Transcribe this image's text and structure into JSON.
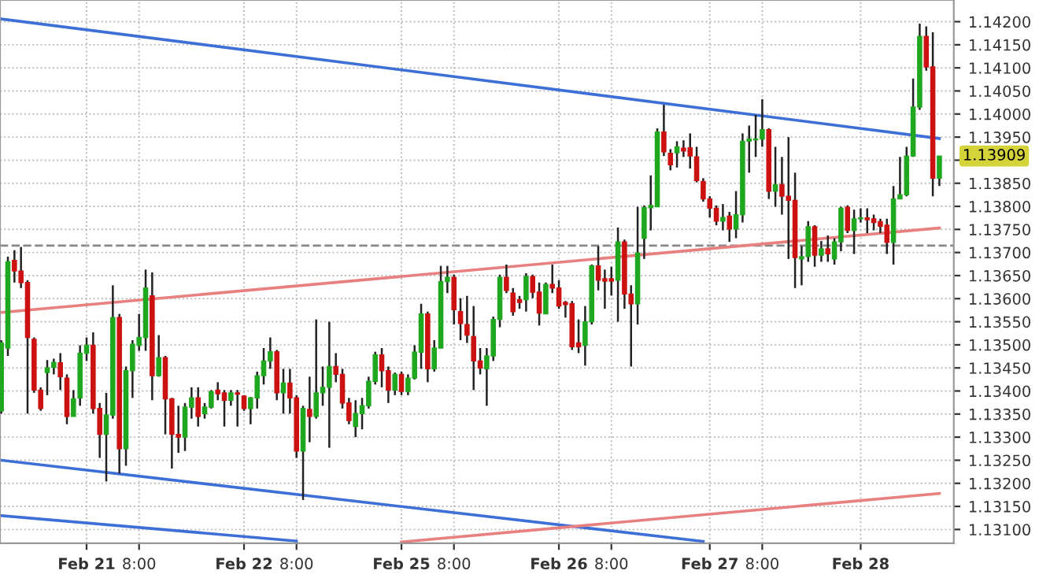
{
  "chart_data": {
    "type": "candlestick",
    "categories": [
      null,
      null,
      null,
      null,
      null,
      null,
      null,
      null,
      null,
      null,
      null,
      null,
      null,
      "Feb 21",
      null,
      null,
      null,
      null,
      null,
      null,
      null,
      "8:00",
      null,
      null,
      null,
      null,
      null,
      null,
      null,
      null,
      null,
      null,
      null,
      null,
      null,
      null,
      null,
      "Feb 22",
      null,
      null,
      null,
      null,
      null,
      null,
      null,
      "8:00",
      null,
      null,
      null,
      null,
      null,
      null,
      null,
      null,
      null,
      null,
      null,
      null,
      null,
      null,
      null,
      "Feb 25",
      null,
      null,
      null,
      null,
      null,
      null,
      null,
      "8:00",
      null,
      null,
      null,
      null,
      null,
      null,
      null,
      null,
      null,
      null,
      null,
      null,
      null,
      null,
      null,
      "Feb 26",
      null,
      null,
      null,
      null,
      null,
      null,
      null,
      "8:00",
      null,
      null,
      null,
      null,
      null,
      null,
      null,
      null,
      null,
      null,
      null,
      null,
      null,
      null,
      "Feb 27",
      null,
      null,
      null,
      null,
      null,
      null,
      null,
      "8:00",
      null,
      null,
      null,
      null,
      null,
      null,
      null,
      null,
      null,
      null,
      null,
      null,
      null,
      null,
      "Feb 28",
      null,
      null,
      null,
      null,
      null,
      null,
      null,
      null,
      null,
      null,
      null,
      null
    ],
    "ohlc": [
      [
        1.13357,
        1.1351,
        1.13351,
        1.13504
      ],
      [
        1.13493,
        1.13691,
        1.13476,
        1.1368
      ],
      [
        1.13683,
        1.13705,
        1.13635,
        1.1366
      ],
      [
        1.1366,
        1.13712,
        1.13623,
        1.13635
      ],
      [
        1.13635,
        1.1364,
        1.13351,
        1.13516
      ],
      [
        1.13512,
        1.13516,
        1.13396,
        1.13402
      ],
      [
        1.13402,
        1.13408,
        1.13357,
        1.13362
      ],
      [
        1.1344,
        1.13467,
        1.13391,
        1.1345
      ],
      [
        1.13451,
        1.1347,
        1.13436,
        1.13462
      ],
      [
        1.13461,
        1.13482,
        1.13402,
        1.13431
      ],
      [
        1.13428,
        1.13436,
        1.13328,
        1.13345
      ],
      [
        1.13345,
        1.13402,
        1.13345,
        1.13383
      ],
      [
        1.13385,
        1.13499,
        1.13368,
        1.13482
      ],
      [
        1.13482,
        1.13516,
        1.13465,
        1.13499
      ],
      [
        1.13499,
        1.13527,
        1.13351,
        1.13362
      ],
      [
        1.13362,
        1.13374,
        1.13255,
        1.13306
      ],
      [
        1.13306,
        1.13396,
        1.13204,
        1.13348
      ],
      [
        1.13348,
        1.13629,
        1.1334,
        1.13559
      ],
      [
        1.13559,
        1.13567,
        1.13221,
        1.13275
      ],
      [
        1.13275,
        1.13453,
        1.13238,
        1.13444
      ],
      [
        1.13444,
        1.1351,
        1.13385,
        1.13501
      ],
      [
        1.13499,
        1.13567,
        1.13487,
        1.13516
      ],
      [
        1.13516,
        1.13663,
        1.13487,
        1.13623
      ],
      [
        1.13606,
        1.13657,
        1.1338,
        1.13433
      ],
      [
        1.13433,
        1.13521,
        1.13431,
        1.13472
      ],
      [
        1.13472,
        1.13476,
        1.13306,
        1.13383
      ],
      [
        1.13383,
        1.13385,
        1.13232,
        1.13306
      ],
      [
        1.13306,
        1.13368,
        1.13266,
        1.133
      ],
      [
        1.133,
        1.13374,
        1.1327,
        1.13365
      ],
      [
        1.13365,
        1.13408,
        1.1334,
        1.13385
      ],
      [
        1.13385,
        1.13408,
        1.13323,
        1.13345
      ],
      [
        1.13351,
        1.13374,
        1.1334,
        1.13365
      ],
      [
        1.13365,
        1.13402,
        1.13362,
        1.13399
      ],
      [
        1.13402,
        1.13419,
        1.1338,
        1.13394
      ],
      [
        1.13396,
        1.13402,
        1.13323,
        1.1338
      ],
      [
        1.1338,
        1.13402,
        1.13368,
        1.13396
      ],
      [
        1.13396,
        1.13402,
        1.13323,
        1.13393
      ],
      [
        1.13389,
        1.13391,
        1.13357,
        1.13362
      ],
      [
        1.13362,
        1.13387,
        1.13328,
        1.13385
      ],
      [
        1.13385,
        1.13442,
        1.13362,
        1.13433
      ],
      [
        1.13433,
        1.13493,
        1.13414,
        1.13465
      ],
      [
        1.13465,
        1.13516,
        1.13448,
        1.13485
      ],
      [
        1.13485,
        1.13489,
        1.1338,
        1.13396
      ],
      [
        1.13396,
        1.13448,
        1.13351,
        1.13417
      ],
      [
        1.13417,
        1.13448,
        1.13351,
        1.13385
      ],
      [
        1.13385,
        1.13391,
        1.13255,
        1.1327
      ],
      [
        1.1327,
        1.13368,
        1.13164,
        1.13362
      ],
      [
        1.1336,
        1.13431,
        1.13289,
        1.13345
      ],
      [
        1.13345,
        1.13555,
        1.1334,
        1.13396
      ],
      [
        1.13396,
        1.13453,
        1.13368,
        1.13408
      ],
      [
        1.13408,
        1.1355,
        1.13277,
        1.13453
      ],
      [
        1.13453,
        1.13482,
        1.13419,
        1.13436
      ],
      [
        1.13436,
        1.13448,
        1.13362,
        1.13374
      ],
      [
        1.13374,
        1.13385,
        1.13328,
        1.13336
      ],
      [
        1.13323,
        1.1338,
        1.133,
        1.13351
      ],
      [
        1.13351,
        1.13385,
        1.13317,
        1.13368
      ],
      [
        1.13368,
        1.13431,
        1.13362,
        1.13421
      ],
      [
        1.13421,
        1.13485,
        1.13414,
        1.13478
      ],
      [
        1.13478,
        1.13493,
        1.13408,
        1.13444
      ],
      [
        1.13444,
        1.13453,
        1.13374,
        1.13402
      ],
      [
        1.13402,
        1.1344,
        1.13391,
        1.13436
      ],
      [
        1.13436,
        1.13442,
        1.13391,
        1.13399
      ],
      [
        1.13399,
        1.13436,
        1.13391,
        1.13428
      ],
      [
        1.13428,
        1.13499,
        1.13425,
        1.13484
      ],
      [
        1.13484,
        1.13589,
        1.13448,
        1.13567
      ],
      [
        1.13567,
        1.13572,
        1.13419,
        1.13448
      ],
      [
        1.13448,
        1.1351,
        1.13442,
        1.13493
      ],
      [
        1.13493,
        1.13671,
        1.13493,
        1.13637
      ],
      [
        1.13637,
        1.13671,
        1.13612,
        1.13646
      ],
      [
        1.13646,
        1.13652,
        1.13544,
        1.13576
      ],
      [
        1.13572,
        1.13601,
        1.1351,
        1.13546
      ],
      [
        1.13544,
        1.13606,
        1.13504,
        1.13521
      ],
      [
        1.13518,
        1.13584,
        1.13402,
        1.13465
      ],
      [
        1.13465,
        1.13493,
        1.13436,
        1.1345
      ],
      [
        1.13448,
        1.13493,
        1.13368,
        1.13476
      ],
      [
        1.13476,
        1.13561,
        1.13465,
        1.13555
      ],
      [
        1.13555,
        1.13652,
        1.13538,
        1.13646
      ],
      [
        1.13646,
        1.13674,
        1.13612,
        1.13618
      ],
      [
        1.13612,
        1.13623,
        1.13563,
        1.13572
      ],
      [
        1.13598,
        1.13606,
        1.13578,
        1.13592
      ],
      [
        1.13598,
        1.13655,
        1.13572,
        1.13648
      ],
      [
        1.13648,
        1.13652,
        1.13601,
        1.13614
      ],
      [
        1.13614,
        1.13635,
        1.13542,
        1.13569
      ],
      [
        1.13567,
        1.13635,
        1.13567,
        1.13631
      ],
      [
        1.13631,
        1.13674,
        1.13612,
        1.13623
      ],
      [
        1.13623,
        1.1364,
        1.13578,
        1.13584
      ],
      [
        1.13592,
        1.13595,
        1.13559,
        1.13587
      ],
      [
        1.13589,
        1.13595,
        1.13489,
        1.13496
      ],
      [
        1.13504,
        1.13555,
        1.13482,
        1.13496
      ],
      [
        1.13499,
        1.13584,
        1.13455,
        1.1355
      ],
      [
        1.1355,
        1.13674,
        1.13544,
        1.13671
      ],
      [
        1.13671,
        1.13714,
        1.13618,
        1.1364
      ],
      [
        1.13643,
        1.13663,
        1.13578,
        1.13638
      ],
      [
        1.13643,
        1.13669,
        1.13607,
        1.13638
      ],
      [
        1.1364,
        1.13754,
        1.1355,
        1.13723
      ],
      [
        1.13723,
        1.13728,
        1.13578,
        1.1361
      ],
      [
        1.1361,
        1.13629,
        1.13453,
        1.13589
      ],
      [
        1.13589,
        1.13799,
        1.13544,
        1.13699
      ],
      [
        1.13731,
        1.13802,
        1.13686,
        1.13797
      ],
      [
        1.13797,
        1.13867,
        1.13748,
        1.13802
      ],
      [
        1.13799,
        1.13969,
        1.13799,
        1.13961
      ],
      [
        1.13961,
        1.1402,
        1.13909,
        1.13918
      ],
      [
        1.13915,
        1.13924,
        1.13878,
        1.1389
      ],
      [
        1.13916,
        1.13941,
        1.13884,
        1.13929
      ],
      [
        1.13926,
        1.13943,
        1.13907,
        1.1392
      ],
      [
        1.13927,
        1.13958,
        1.13882,
        1.13909
      ],
      [
        1.13907,
        1.13929,
        1.13852,
        1.13856
      ],
      [
        1.13854,
        1.13861,
        1.1381,
        1.13816
      ],
      [
        1.13816,
        1.13822,
        1.13776,
        1.13796
      ],
      [
        1.13796,
        1.13802,
        1.13759,
        1.13768
      ],
      [
        1.13768,
        1.13805,
        1.13748,
        1.13776
      ],
      [
        1.13779,
        1.13788,
        1.13723,
        1.13751
      ],
      [
        1.13751,
        1.13833,
        1.13731,
        1.13782
      ],
      [
        1.13782,
        1.13958,
        1.13765,
        1.13941
      ],
      [
        1.13941,
        1.13975,
        1.13873,
        1.13946
      ],
      [
        1.13944,
        1.13998,
        1.13907,
        1.13946
      ],
      [
        1.13946,
        1.14032,
        1.13929,
        1.13966
      ],
      [
        1.13966,
        1.13969,
        1.13816,
        1.13833
      ],
      [
        1.13833,
        1.13929,
        1.13799,
        1.13847
      ],
      [
        1.13847,
        1.13907,
        1.13782,
        1.13822
      ],
      [
        1.13822,
        1.1395,
        1.13686,
        1.13813
      ],
      [
        1.13813,
        1.13873,
        1.13623,
        1.13689
      ],
      [
        1.13686,
        1.13714,
        1.13629,
        1.13691
      ],
      [
        1.13691,
        1.13768,
        1.1368,
        1.13756
      ],
      [
        1.13756,
        1.13759,
        1.13669,
        1.13694
      ],
      [
        1.13694,
        1.13725,
        1.1368,
        1.13708
      ],
      [
        1.13708,
        1.13737,
        1.1368,
        1.13697
      ],
      [
        1.13686,
        1.13731,
        1.13674,
        1.13723
      ],
      [
        1.13723,
        1.13799,
        1.13703,
        1.13796
      ],
      [
        1.13798,
        1.13802,
        1.13742,
        1.13748
      ],
      [
        1.13748,
        1.13793,
        1.13697,
        1.13773
      ],
      [
        1.13773,
        1.13796,
        1.13765,
        1.13775
      ],
      [
        1.13775,
        1.13796,
        1.13742,
        1.13771
      ],
      [
        1.13773,
        1.13782,
        1.13748,
        1.13765
      ],
      [
        1.13767,
        1.13773,
        1.13742,
        1.13757
      ],
      [
        1.13759,
        1.13773,
        1.13697,
        1.13722
      ],
      [
        1.13722,
        1.13844,
        1.13674,
        1.13816
      ],
      [
        1.13816,
        1.13907,
        1.13816,
        1.13825
      ],
      [
        1.13825,
        1.13929,
        1.13822,
        1.13909
      ],
      [
        1.13909,
        1.14077,
        1.13907,
        1.14015
      ],
      [
        1.14015,
        1.14196,
        1.14009,
        1.14168
      ],
      [
        1.14168,
        1.1419,
        1.14094,
        1.14102
      ],
      [
        1.14102,
        1.14177,
        1.13822,
        1.13861
      ],
      [
        1.13861,
        1.13909,
        1.13844,
        1.13909
      ]
    ],
    "colors": [
      "#1fa81f",
      "#1fa81f",
      "#cc1111",
      "#cc1111",
      "#cc1111",
      "#cc1111",
      "#cc1111",
      "#1fa81f",
      "#1fa81f",
      "#cc1111",
      "#cc1111",
      "#1fa81f",
      "#1fa81f",
      "#1fa81f",
      "#cc1111",
      "#cc1111",
      "#1fa81f",
      "#1fa81f",
      "#cc1111",
      "#1fa81f",
      "#1fa81f",
      "#1fa81f",
      "#1fa81f",
      "#cc1111",
      "#1fa81f",
      "#cc1111",
      "#cc1111",
      "#cc1111",
      "#1fa81f",
      "#1fa81f",
      "#cc1111",
      "#1fa81f",
      "#1fa81f",
      "#cc1111",
      "#cc1111",
      "#1fa81f",
      "#cc1111",
      "#cc1111",
      "#1fa81f",
      "#1fa81f",
      "#1fa81f",
      "#1fa81f",
      "#cc1111",
      "#1fa81f",
      "#cc1111",
      "#cc1111",
      "#1fa81f",
      "#cc1111",
      "#1fa81f",
      "#1fa81f",
      "#1fa81f",
      "#cc1111",
      "#cc1111",
      "#cc1111",
      "#1fa81f",
      "#1fa81f",
      "#1fa81f",
      "#1fa81f",
      "#cc1111",
      "#cc1111",
      "#1fa81f",
      "#cc1111",
      "#1fa81f",
      "#1fa81f",
      "#1fa81f",
      "#cc1111",
      "#1fa81f",
      "#1fa81f",
      "#1fa81f",
      "#cc1111",
      "#cc1111",
      "#cc1111",
      "#cc1111",
      "#cc1111",
      "#1fa81f",
      "#1fa81f",
      "#1fa81f",
      "#cc1111",
      "#cc1111",
      "#cc1111",
      "#1fa81f",
      "#cc1111",
      "#cc1111",
      "#1fa81f",
      "#cc1111",
      "#cc1111",
      "#cc1111",
      "#cc1111",
      "#cc1111",
      "#1fa81f",
      "#1fa81f",
      "#cc1111",
      "#cc1111",
      "#cc1111",
      "#1fa81f",
      "#cc1111",
      "#cc1111",
      "#1fa81f",
      "#1fa81f",
      "#1fa81f",
      "#1fa81f",
      "#cc1111",
      "#cc1111",
      "#1fa81f",
      "#cc1111",
      "#cc1111",
      "#cc1111",
      "#cc1111",
      "#cc1111",
      "#cc1111",
      "#1fa81f",
      "#cc1111",
      "#1fa81f",
      "#1fa81f",
      "#1fa81f",
      "#1fa81f",
      "#1fa81f",
      "#cc1111",
      "#1fa81f",
      "#cc1111",
      "#cc1111",
      "#cc1111",
      "#1fa81f",
      "#1fa81f",
      "#cc1111",
      "#1fa81f",
      "#cc1111",
      "#1fa81f",
      "#1fa81f",
      "#cc1111",
      "#1fa81f",
      "#1fa81f",
      "#cc1111",
      "#cc1111",
      "#cc1111",
      "#cc1111",
      "#1fa81f",
      "#1fa81f",
      "#1fa81f",
      "#1fa81f",
      "#1fa81f",
      "#cc1111",
      "#cc1111",
      "#1fa81f"
    ],
    "series": [
      {
        "type": "line",
        "color": "#3d6fd6",
        "values": [
          1.14206,
          null,
          null,
          null,
          null,
          null,
          null,
          null,
          null,
          null,
          null,
          null,
          null,
          null,
          null,
          null,
          null,
          null,
          null,
          null,
          null,
          null,
          null,
          null,
          null,
          null,
          null,
          null,
          null,
          null,
          null,
          null,
          null,
          null,
          null,
          null,
          null,
          null,
          null,
          null,
          null,
          null,
          null,
          null,
          null,
          null,
          null,
          null,
          null,
          null,
          null,
          null,
          null,
          null,
          null,
          null,
          null,
          null,
          null,
          null,
          null,
          null,
          null,
          null,
          null,
          null,
          null,
          null,
          null,
          null,
          null,
          null,
          null,
          null,
          null,
          null,
          null,
          null,
          null,
          null,
          null,
          null,
          null,
          null,
          null,
          null,
          null,
          null,
          null,
          null,
          null,
          null,
          null,
          null,
          null,
          null,
          null,
          null,
          null,
          null,
          null,
          null,
          null,
          null,
          null,
          null,
          null,
          null,
          null,
          null,
          null,
          null,
          null,
          null,
          null,
          null,
          null,
          null,
          null,
          null,
          null,
          null,
          null,
          null,
          null,
          null,
          null,
          null,
          null,
          null,
          null,
          null,
          null,
          null,
          null,
          null,
          null,
          null,
          null,
          null,
          null,
          null,
          null,
          1.13947
        ]
      },
      {
        "type": "line",
        "color": "#3d6fd6",
        "values": [
          1.1325,
          null,
          null,
          null,
          null,
          null,
          null,
          null,
          null,
          null,
          null,
          null,
          null,
          null,
          null,
          null,
          null,
          null,
          null,
          null,
          null,
          null,
          null,
          null,
          null,
          null,
          null,
          null,
          null,
          null,
          null,
          null,
          null,
          null,
          null,
          null,
          null,
          null,
          null,
          null,
          null,
          null,
          null,
          null,
          null,
          null,
          null,
          null,
          null,
          null,
          null,
          null,
          null,
          null,
          null,
          null,
          null,
          null,
          null,
          null,
          null,
          null,
          null,
          null,
          null,
          null,
          null,
          null,
          null,
          null,
          null,
          null,
          null,
          null,
          null,
          null,
          null,
          null,
          null,
          null,
          null,
          null,
          null,
          null,
          null,
          null,
          null,
          null,
          null,
          null,
          null,
          null,
          null,
          null,
          null,
          null,
          null,
          null,
          null,
          null,
          null,
          null,
          null,
          null,
          null,
          null,
          null,
          1.13074,
          null,
          null,
          null,
          null,
          null,
          null,
          null,
          null,
          null,
          null,
          null,
          null,
          null,
          null,
          null,
          null,
          null,
          null,
          null,
          null,
          null,
          null,
          null,
          null,
          null,
          null,
          null,
          null,
          null,
          null,
          null,
          null,
          null,
          null,
          null,
          null
        ]
      },
      {
        "type": "line",
        "color": "#3d6fd6",
        "values": [
          1.1313,
          null,
          null,
          null,
          null,
          null,
          null,
          null,
          null,
          null,
          null,
          null,
          null,
          null,
          null,
          null,
          null,
          null,
          null,
          null,
          null,
          null,
          null,
          null,
          null,
          null,
          null,
          null,
          null,
          null,
          null,
          null,
          null,
          null,
          null,
          null,
          null,
          null,
          null,
          null,
          null,
          null,
          null,
          null,
          null,
          1.13075,
          null,
          null,
          null,
          null,
          null,
          null,
          null,
          null,
          null,
          null,
          null,
          null,
          null,
          null,
          null,
          null,
          null,
          null,
          null,
          null,
          null,
          null,
          null,
          null,
          null,
          null,
          null,
          null,
          null,
          null,
          null,
          null,
          null,
          null,
          null,
          null,
          null,
          null,
          null,
          null,
          null,
          null,
          null,
          null,
          null,
          null,
          null,
          null,
          null,
          null,
          null,
          null,
          null,
          null,
          null,
          null,
          null,
          null,
          null,
          null,
          null,
          null,
          null,
          null,
          null,
          null,
          null,
          null,
          null,
          null,
          null,
          null,
          null,
          null,
          null,
          null,
          null,
          null,
          null,
          null,
          null,
          null,
          null,
          null,
          null,
          null,
          null,
          null,
          null,
          null,
          null,
          null,
          null,
          null,
          null,
          null,
          null,
          null
        ]
      },
      {
        "type": "line",
        "color": "#e88080",
        "values": [
          1.1357,
          null,
          null,
          null,
          null,
          null,
          null,
          null,
          null,
          null,
          null,
          null,
          null,
          null,
          null,
          null,
          null,
          null,
          null,
          null,
          null,
          null,
          null,
          null,
          null,
          null,
          null,
          null,
          null,
          null,
          null,
          null,
          null,
          null,
          null,
          null,
          null,
          null,
          null,
          null,
          null,
          null,
          null,
          null,
          null,
          null,
          null,
          null,
          null,
          null,
          null,
          null,
          null,
          null,
          null,
          null,
          null,
          null,
          null,
          null,
          null,
          null,
          null,
          null,
          null,
          null,
          null,
          null,
          null,
          null,
          null,
          null,
          null,
          null,
          null,
          null,
          null,
          null,
          null,
          null,
          null,
          null,
          null,
          null,
          null,
          null,
          null,
          null,
          null,
          null,
          null,
          null,
          null,
          null,
          null,
          null,
          null,
          null,
          null,
          null,
          null,
          null,
          null,
          null,
          null,
          null,
          null,
          null,
          null,
          null,
          null,
          null,
          null,
          null,
          null,
          null,
          null,
          null,
          null,
          null,
          null,
          null,
          null,
          null,
          null,
          null,
          null,
          null,
          null,
          null,
          null,
          null,
          null,
          null,
          null,
          null,
          null,
          null,
          null,
          null,
          null,
          null,
          null,
          1.13753
        ]
      },
      {
        "type": "line",
        "color": "#e88080",
        "values": [
          null,
          null,
          null,
          null,
          null,
          null,
          null,
          null,
          null,
          null,
          null,
          null,
          null,
          null,
          null,
          null,
          null,
          null,
          null,
          null,
          null,
          null,
          null,
          null,
          null,
          null,
          null,
          null,
          null,
          null,
          null,
          null,
          null,
          null,
          null,
          null,
          null,
          null,
          null,
          null,
          null,
          null,
          null,
          null,
          null,
          null,
          null,
          null,
          null,
          null,
          null,
          null,
          null,
          null,
          null,
          null,
          null,
          null,
          null,
          null,
          null,
          1.13073,
          null,
          null,
          null,
          null,
          null,
          null,
          null,
          null,
          null,
          null,
          null,
          null,
          null,
          null,
          null,
          null,
          null,
          null,
          null,
          null,
          null,
          null,
          null,
          null,
          null,
          null,
          null,
          null,
          null,
          null,
          null,
          null,
          null,
          null,
          null,
          null,
          null,
          null,
          null,
          null,
          null,
          null,
          null,
          null,
          null,
          null,
          null,
          null,
          null,
          null,
          null,
          null,
          null,
          null,
          null,
          null,
          null,
          null,
          null,
          null,
          null,
          null,
          null,
          null,
          null,
          null,
          null,
          null,
          null,
          null,
          null,
          null,
          null,
          null,
          null,
          null,
          null,
          null,
          null,
          null,
          null,
          1.13178
        ]
      }
    ],
    "ylim": [
      1.1307,
      1.14247
    ],
    "yticks": [
      {
        "value": 1.131,
        "label": "1.13100"
      },
      {
        "value": 1.1315,
        "label": "1.13150"
      },
      {
        "value": 1.132,
        "label": "1.13200"
      },
      {
        "value": 1.1325,
        "label": "1.13250"
      },
      {
        "value": 1.133,
        "label": "1.13300"
      },
      {
        "value": 1.1335,
        "label": "1.13350"
      },
      {
        "value": 1.134,
        "label": "1.13400"
      },
      {
        "value": 1.1345,
        "label": "1.13450"
      },
      {
        "value": 1.135,
        "label": "1.13500"
      },
      {
        "value": 1.1355,
        "label": "1.13550"
      },
      {
        "value": 1.136,
        "label": "1.13600"
      },
      {
        "value": 1.1365,
        "label": "1.13650"
      },
      {
        "value": 1.137,
        "label": "1.13700"
      },
      {
        "value": 1.1375,
        "label": "1.13750"
      },
      {
        "value": 1.138,
        "label": "1.13800"
      },
      {
        "value": 1.1385,
        "label": "1.13850"
      },
      {
        "value": 1.139,
        "label": null
      },
      {
        "value": 1.1395,
        "label": "1.13950"
      },
      {
        "value": 1.14,
        "label": "1.14000"
      },
      {
        "value": 1.1405,
        "label": "1.14050"
      },
      {
        "value": 1.141,
        "label": "1.14100"
      },
      {
        "value": 1.1415,
        "label": "1.14150"
      },
      {
        "value": 1.142,
        "label": "1.14200"
      }
    ],
    "ref_lines": [
      {
        "axis": "y",
        "value": 1.13715,
        "color": "#888888",
        "line_style": "dashed"
      }
    ],
    "annotations": [
      "1.13909"
    ],
    "grid": true,
    "legend": false
  }
}
